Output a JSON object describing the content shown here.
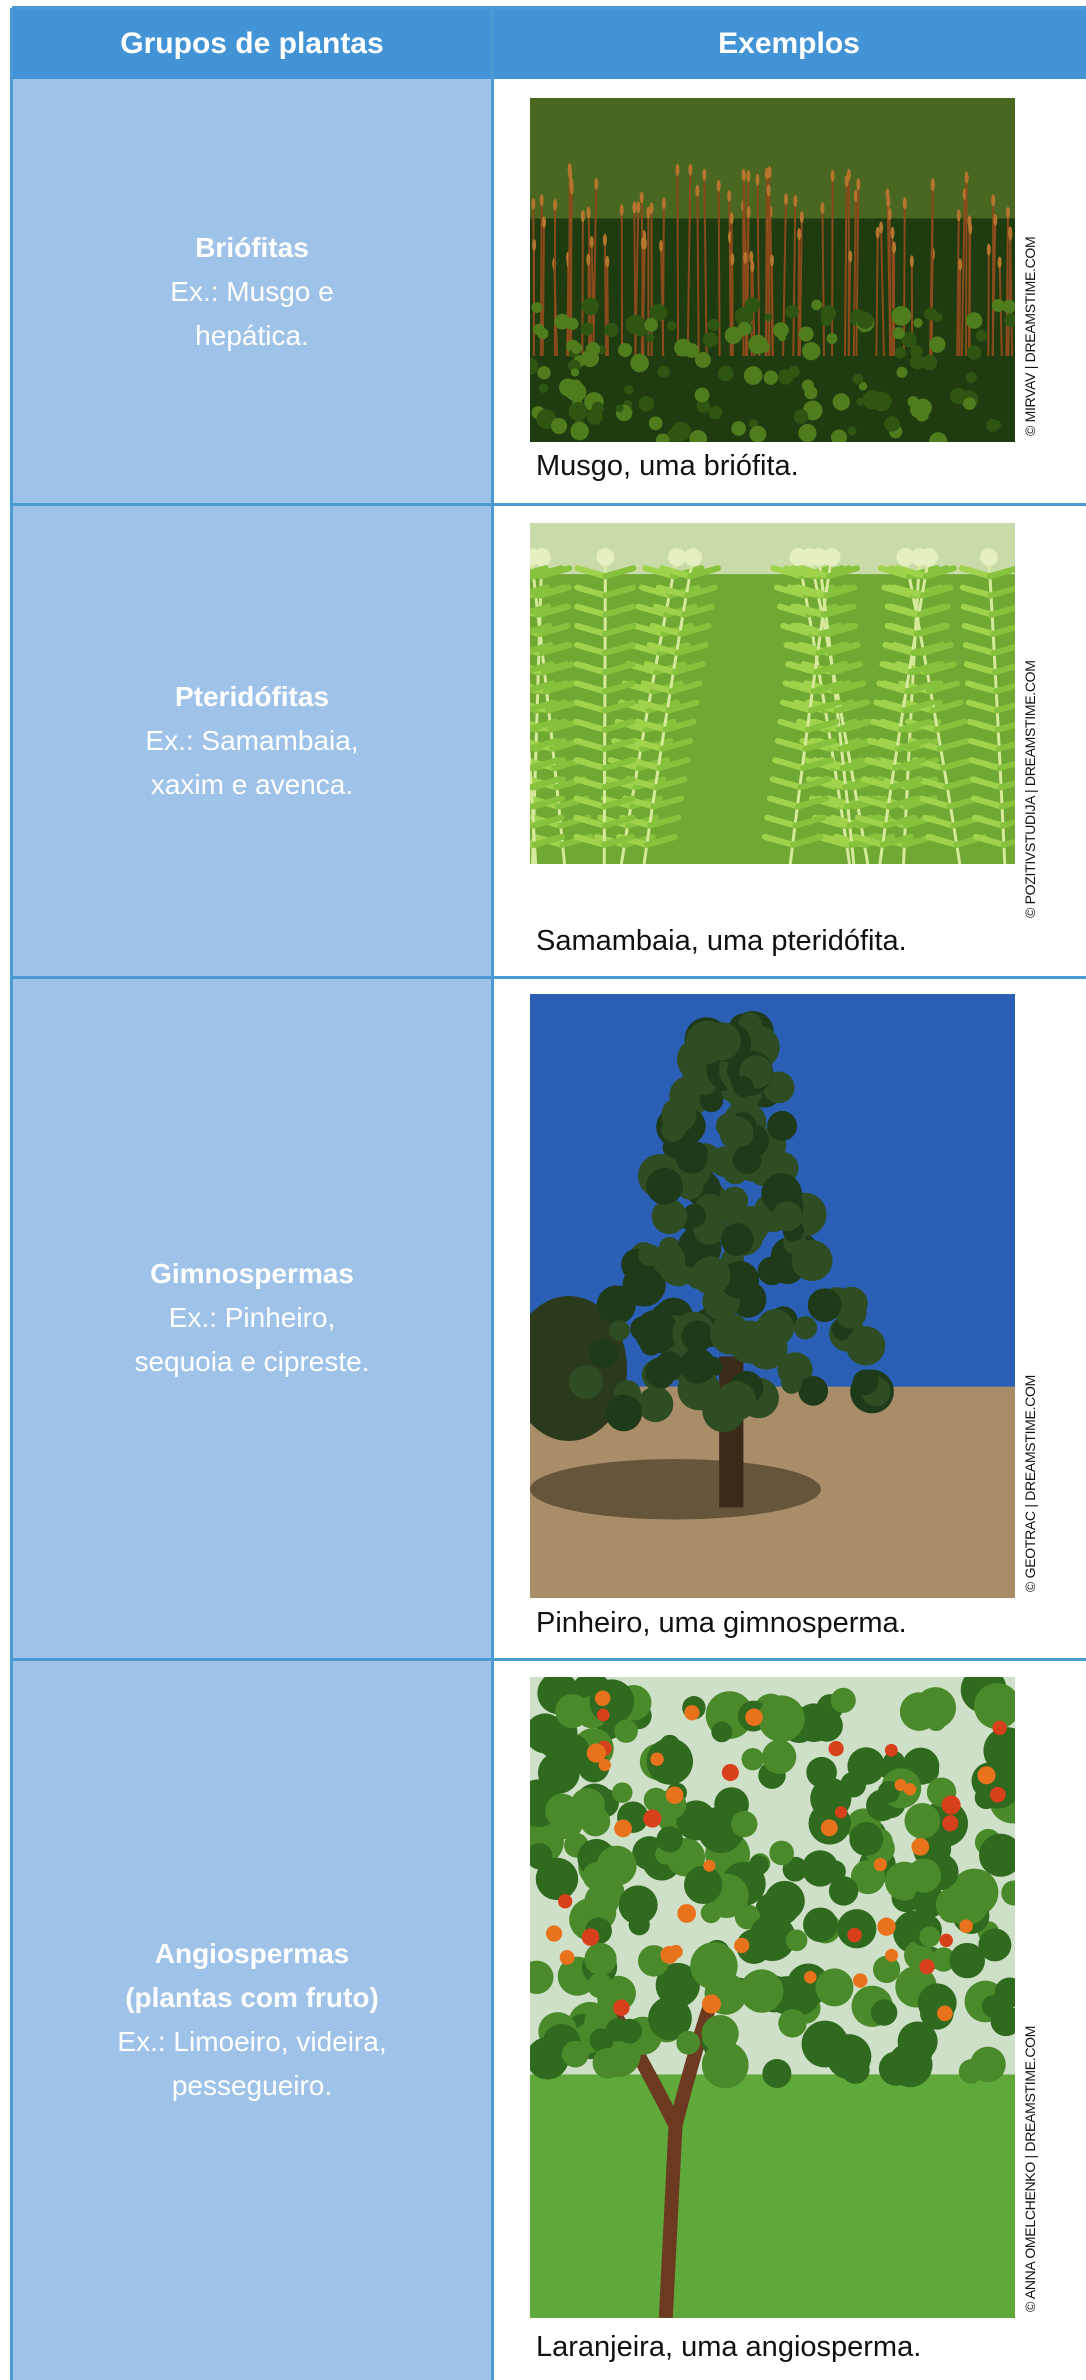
{
  "table": {
    "header": [
      "Grupos de plantas",
      "Exemplos"
    ],
    "rows": [
      {
        "group": [
          "Briófitas"
        ],
        "examples": [
          "Ex.: Musgo e",
          "hepática."
        ],
        "caption": "Musgo, uma briófita.",
        "credit": "© MIRVAV | DREAMSTIME.COM"
      },
      {
        "group": [
          "Pteridófitas"
        ],
        "examples": [
          "Ex.: Samambaia,",
          "xaxim e avenca."
        ],
        "caption": "Samambaia, uma pteridófita.",
        "credit": "© POZITIVSTUDIJA | DREAMSTIME.COM"
      },
      {
        "group": [
          "Gimnospermas"
        ],
        "examples": [
          "Ex.: Pinheiro,",
          "sequoia e cipreste."
        ],
        "caption": "Pinheiro, uma gimnosperma.",
        "credit": "© GEOTRAC | DREAMSTIME.COM"
      },
      {
        "group": [
          "Angiospermas",
          "(plantas com fruto)"
        ],
        "examples": [
          "Ex.: Limoeiro, videira,",
          "pessegueiro."
        ],
        "caption": "Laranjeira, uma angiosperma.",
        "credit": "© ANNA OMELCHENKO | DREAMSTIME.COM"
      }
    ]
  }
}
